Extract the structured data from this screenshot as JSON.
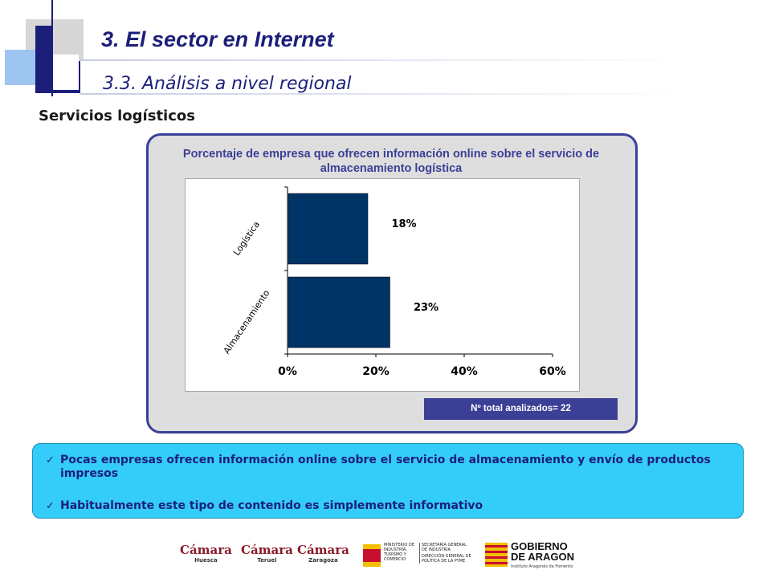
{
  "header": {
    "title": "3. El sector en Internet",
    "subtitle": "3.3. Análisis a nivel regional"
  },
  "section_title": "Servicios logísticos",
  "panel": {
    "title": "Porcentaje de empresa que ofrecen información online sobre el servicio de almacenamiento logística",
    "total_label": "Nº total analizados= 22"
  },
  "chart_data": {
    "type": "bar",
    "orientation": "horizontal",
    "categories": [
      "Logística",
      "Almacenamiento"
    ],
    "values": [
      18,
      23
    ],
    "data_labels": [
      "18%",
      "23%"
    ],
    "x_ticks": [
      "0%",
      "20%",
      "40%",
      "60%"
    ],
    "xlim": [
      0,
      60
    ],
    "bar_color": "#003366",
    "grid": false
  },
  "notes": [
    "Pocas empresas ofrecen información online sobre el servicio de almacenamiento y envío de productos impresos",
    "Habitualmente este tipo de contenido es simplemente informativo"
  ],
  "footer_logos": {
    "camara": "Cámara",
    "camara_huesca": "Huesca",
    "camara_teruel": "Teruel",
    "camara_zaragoza": "Zaragoza",
    "ministerio": "MINISTERIO DE INDUSTRIA, TURISMO Y COMERCIO",
    "secretaria": "SECRETARÍA GENERAL DE INDUSTRIA",
    "direccion": "DIRECCIÓN GENERAL DE POLÍTICA DE LA PYME",
    "gobierno_line1": "GOBIERNO",
    "gobierno_line2": "DE ARAGON",
    "gobierno_sub": "Instituto Aragonés de Fomento"
  },
  "colors": {
    "navy": "#1b1f7a",
    "panel_border": "#3b3f96",
    "notes_bg": "#34ccf8",
    "bar": "#003366"
  }
}
